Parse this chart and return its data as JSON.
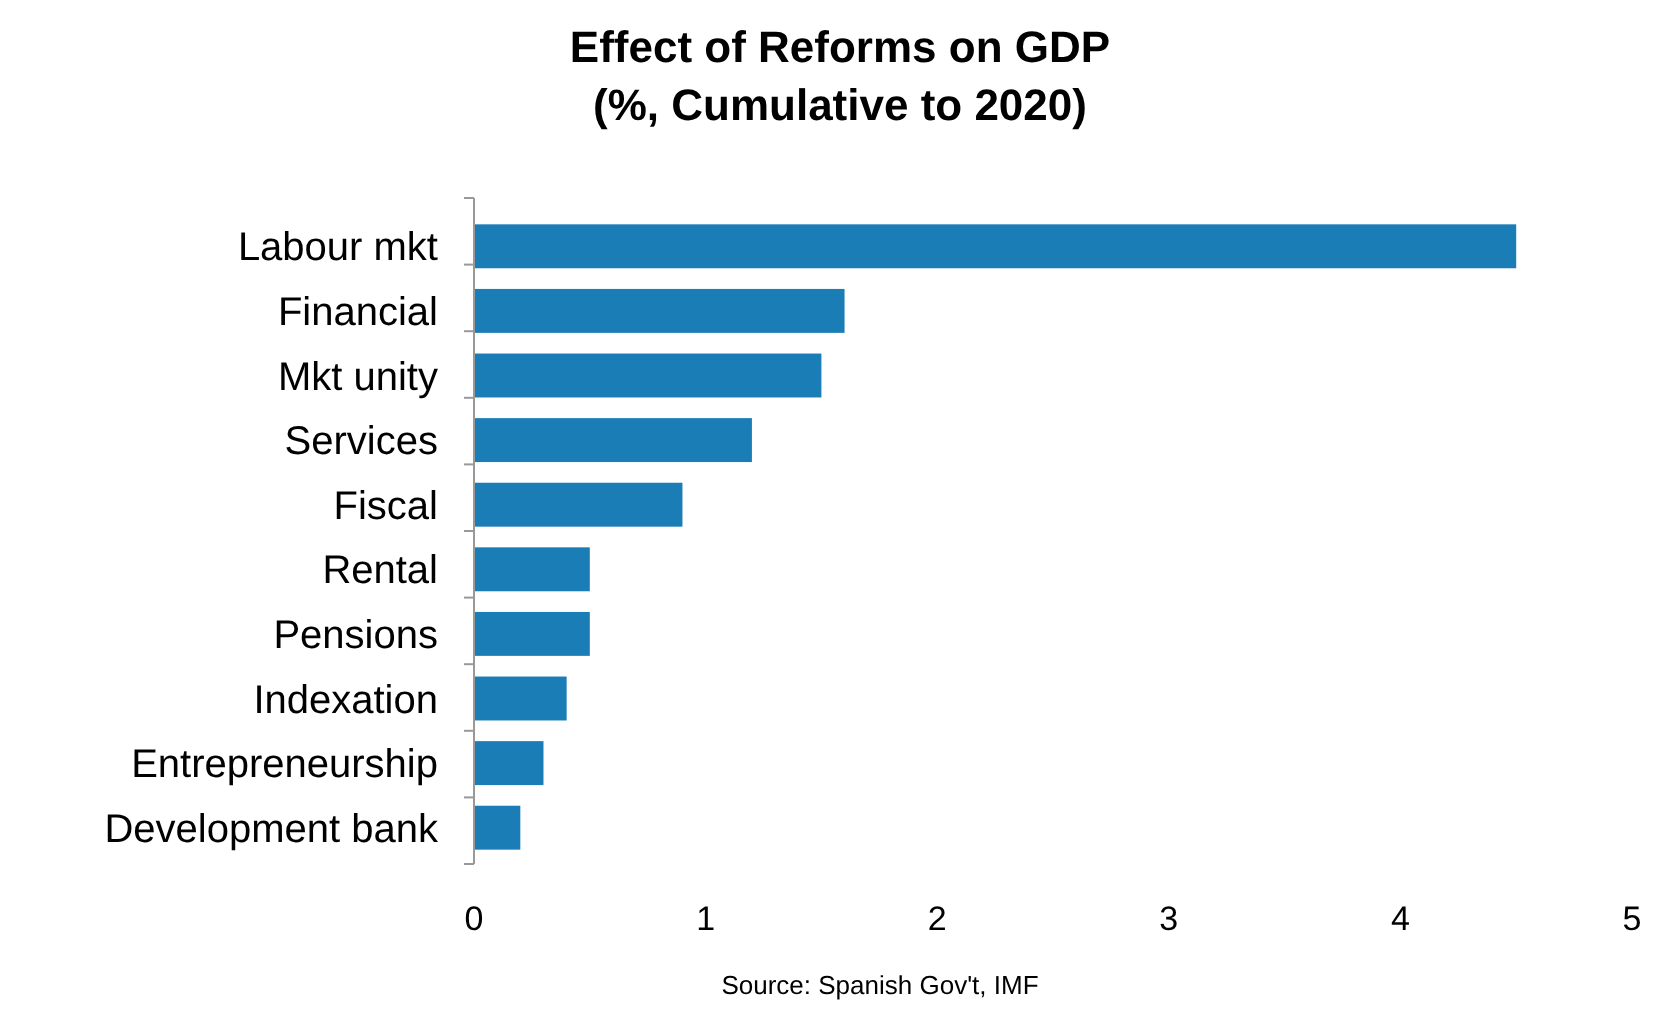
{
  "chart_data": {
    "type": "bar",
    "orientation": "horizontal",
    "title": "Effect of Reforms on GDP",
    "subtitle": "(%, Cumulative to 2020)",
    "categories": [
      "Labour mkt",
      "Financial",
      "Mkt unity",
      "Services",
      "Fiscal",
      "Rental",
      "Pensions",
      "Indexation",
      "Entrepreneurship",
      "Development bank"
    ],
    "values": [
      4.5,
      1.6,
      1.5,
      1.2,
      0.9,
      0.5,
      0.5,
      0.4,
      0.3,
      0.2
    ],
    "color": "#1a7db6",
    "xlim": [
      0,
      5
    ],
    "xticks": [
      0,
      1,
      2,
      3,
      4,
      5
    ],
    "annotations": [
      "Source: Spanish Gov't, IMF"
    ]
  }
}
